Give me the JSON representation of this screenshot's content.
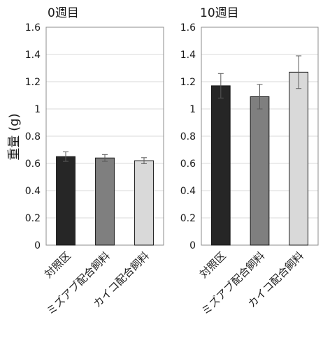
{
  "y_axis_label": "重量 (g)",
  "chart_data": [
    {
      "type": "bar",
      "title": "0週目",
      "categories": [
        "対照区",
        "ミズアブ配合飼料",
        "カイコ配合飼料"
      ],
      "values": [
        0.65,
        0.64,
        0.62
      ],
      "error": [
        0.035,
        0.025,
        0.022
      ],
      "colors": [
        "#262626",
        "#7f7f7f",
        "#d9d9d9"
      ],
      "ylim": [
        0,
        1.6
      ],
      "yticks": [
        "0",
        "0.2",
        "0.4",
        "0.6",
        "0.8",
        "1",
        "1.2",
        "1.4",
        "1.6"
      ],
      "ytick_values": [
        0,
        0.2,
        0.4,
        0.6,
        0.8,
        1,
        1.2,
        1.4,
        1.6
      ],
      "grid": true
    },
    {
      "type": "bar",
      "title": "10週目",
      "categories": [
        "対照区",
        "ミズアブ配合飼料",
        "カイコ配合飼料"
      ],
      "values": [
        1.17,
        1.09,
        1.27
      ],
      "error": [
        0.09,
        0.09,
        0.12
      ],
      "colors": [
        "#262626",
        "#7f7f7f",
        "#d9d9d9"
      ],
      "ylim": [
        0,
        1.6
      ],
      "yticks": [
        "0",
        "0.2",
        "0.4",
        "0.6",
        "0.8",
        "1",
        "1.2",
        "1.4",
        "1.6"
      ],
      "ytick_values": [
        0,
        0.2,
        0.4,
        0.6,
        0.8,
        1,
        1.2,
        1.4,
        1.6
      ],
      "grid": true
    }
  ]
}
